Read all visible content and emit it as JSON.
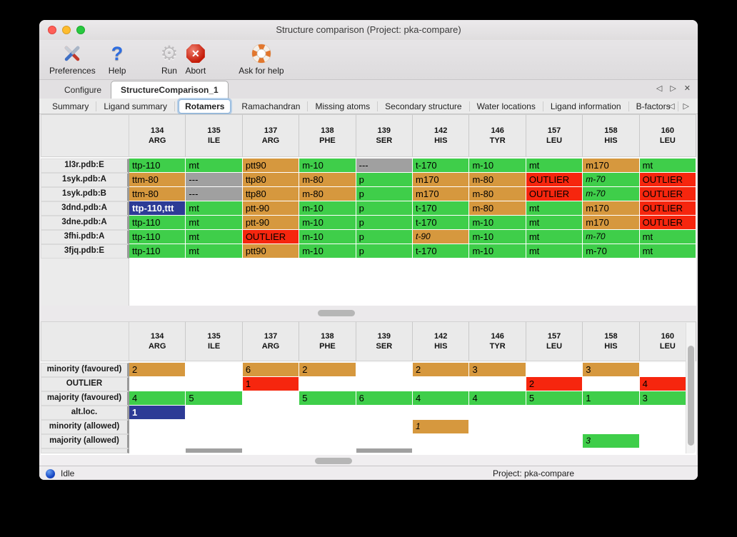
{
  "window": {
    "title": "Structure comparison (Project: pka-compare)"
  },
  "toolbar": [
    {
      "label": "Preferences"
    },
    {
      "label": "Help"
    },
    {
      "label": "Run"
    },
    {
      "label": "Abort"
    },
    {
      "label": "Ask for help"
    }
  ],
  "tabs": {
    "items": [
      "Configure",
      "StructureComparison_1"
    ],
    "active_index": 1
  },
  "subtabs": {
    "items": [
      "Summary",
      "Ligand summary",
      "Rotamers",
      "Ramachandran",
      "Missing atoms",
      "Secondary structure",
      "Water locations",
      "Ligand information",
      "B-factors"
    ],
    "active_index": 2
  },
  "nav": {
    "tab_arrows": [
      "◁",
      "▷",
      "✕"
    ],
    "subtab_arrows": [
      "◁",
      "▷"
    ]
  },
  "colors": {
    "favoured": "#3fce4a",
    "minority": "#d6983e",
    "outlier": "#f6260e",
    "missing": "#a0a0a0",
    "selected": "#2d3b96",
    "selected_text": "#ffffff"
  },
  "columns": [
    {
      "number": "134",
      "residue": "ARG"
    },
    {
      "number": "135",
      "residue": "ILE"
    },
    {
      "number": "137",
      "residue": "ARG"
    },
    {
      "number": "138",
      "residue": "PHE"
    },
    {
      "number": "139",
      "residue": "SER"
    },
    {
      "number": "142",
      "residue": "HIS"
    },
    {
      "number": "146",
      "residue": "TYR"
    },
    {
      "number": "157",
      "residue": "LEU"
    },
    {
      "number": "158",
      "residue": "HIS"
    },
    {
      "number": "160",
      "residue": "LEU"
    }
  ],
  "rotamer_table": {
    "rows": [
      {
        "label": "1l3r.pdb:E",
        "cells": [
          {
            "t": "ttp-110",
            "s": "favoured"
          },
          {
            "t": "mt",
            "s": "favoured"
          },
          {
            "t": "ptt90",
            "s": "minority"
          },
          {
            "t": "m-10",
            "s": "favoured"
          },
          {
            "t": "---",
            "s": "missing"
          },
          {
            "t": "t-170",
            "s": "favoured"
          },
          {
            "t": "m-10",
            "s": "favoured"
          },
          {
            "t": "mt",
            "s": "favoured"
          },
          {
            "t": "m170",
            "s": "minority"
          },
          {
            "t": "mt",
            "s": "favoured"
          }
        ]
      },
      {
        "label": "1syk.pdb:A",
        "cells": [
          {
            "t": "ttm-80",
            "s": "minority"
          },
          {
            "t": "---",
            "s": "missing"
          },
          {
            "t": "ttp80",
            "s": "minority"
          },
          {
            "t": "m-80",
            "s": "minority"
          },
          {
            "t": "p",
            "s": "favoured"
          },
          {
            "t": "m170",
            "s": "minority"
          },
          {
            "t": "m-80",
            "s": "minority"
          },
          {
            "t": "OUTLIER",
            "s": "outlier"
          },
          {
            "t": "m-70",
            "s": "favoured",
            "i": true
          },
          {
            "t": "OUTLIER",
            "s": "outlier"
          }
        ]
      },
      {
        "label": "1syk.pdb:B",
        "cells": [
          {
            "t": "ttm-80",
            "s": "minority"
          },
          {
            "t": "---",
            "s": "missing"
          },
          {
            "t": "ttp80",
            "s": "minority"
          },
          {
            "t": "m-80",
            "s": "minority"
          },
          {
            "t": "p",
            "s": "favoured"
          },
          {
            "t": "m170",
            "s": "minority"
          },
          {
            "t": "m-80",
            "s": "minority"
          },
          {
            "t": "OUTLIER",
            "s": "outlier"
          },
          {
            "t": "m-70",
            "s": "favoured",
            "i": true
          },
          {
            "t": "OUTLIER",
            "s": "outlier"
          }
        ]
      },
      {
        "label": "3dnd.pdb:A",
        "cells": [
          {
            "t": "ttp-110,ttt",
            "s": "selected"
          },
          {
            "t": "mt",
            "s": "favoured"
          },
          {
            "t": "ptt-90",
            "s": "minority"
          },
          {
            "t": "m-10",
            "s": "favoured"
          },
          {
            "t": "p",
            "s": "favoured"
          },
          {
            "t": "t-170",
            "s": "favoured"
          },
          {
            "t": "m-80",
            "s": "minority"
          },
          {
            "t": "mt",
            "s": "favoured"
          },
          {
            "t": "m170",
            "s": "minority"
          },
          {
            "t": "OUTLIER",
            "s": "outlier"
          }
        ]
      },
      {
        "label": "3dne.pdb:A",
        "cells": [
          {
            "t": "ttp-110",
            "s": "favoured"
          },
          {
            "t": "mt",
            "s": "favoured"
          },
          {
            "t": "ptt-90",
            "s": "minority"
          },
          {
            "t": "m-10",
            "s": "favoured"
          },
          {
            "t": "p",
            "s": "favoured"
          },
          {
            "t": "t-170",
            "s": "favoured"
          },
          {
            "t": "m-10",
            "s": "favoured"
          },
          {
            "t": "mt",
            "s": "favoured"
          },
          {
            "t": "m170",
            "s": "minority"
          },
          {
            "t": "OUTLIER",
            "s": "outlier"
          }
        ]
      },
      {
        "label": "3fhi.pdb:A",
        "cells": [
          {
            "t": "ttp-110",
            "s": "favoured"
          },
          {
            "t": "mt",
            "s": "favoured"
          },
          {
            "t": "OUTLIER",
            "s": "outlier"
          },
          {
            "t": "m-10",
            "s": "favoured"
          },
          {
            "t": "p",
            "s": "favoured"
          },
          {
            "t": "t-90",
            "s": "minority",
            "i": true
          },
          {
            "t": "m-10",
            "s": "favoured"
          },
          {
            "t": "mt",
            "s": "favoured"
          },
          {
            "t": "m-70",
            "s": "favoured",
            "i": true
          },
          {
            "t": "mt",
            "s": "favoured"
          }
        ]
      },
      {
        "label": "3fjq.pdb:E",
        "cells": [
          {
            "t": "ttp-110",
            "s": "favoured"
          },
          {
            "t": "mt",
            "s": "favoured"
          },
          {
            "t": "ptt90",
            "s": "minority"
          },
          {
            "t": "m-10",
            "s": "favoured"
          },
          {
            "t": "p",
            "s": "favoured"
          },
          {
            "t": "t-170",
            "s": "favoured"
          },
          {
            "t": "m-10",
            "s": "favoured"
          },
          {
            "t": "mt",
            "s": "favoured"
          },
          {
            "t": "m-70",
            "s": "favoured"
          },
          {
            "t": "mt",
            "s": "favoured"
          }
        ]
      }
    ]
  },
  "summary_table": {
    "rows": [
      {
        "label": "minority (favoured)",
        "cells": [
          {
            "t": "2",
            "s": "minority"
          },
          {
            "t": "",
            "s": "none"
          },
          {
            "t": "6",
            "s": "minority"
          },
          {
            "t": "2",
            "s": "minority"
          },
          {
            "t": "",
            "s": "none"
          },
          {
            "t": "2",
            "s": "minority"
          },
          {
            "t": "3",
            "s": "minority"
          },
          {
            "t": "",
            "s": "none"
          },
          {
            "t": "3",
            "s": "minority"
          },
          {
            "t": "",
            "s": "none"
          }
        ]
      },
      {
        "label": "OUTLIER",
        "cells": [
          {
            "t": "",
            "s": "none"
          },
          {
            "t": "",
            "s": "none"
          },
          {
            "t": "1",
            "s": "outlier"
          },
          {
            "t": "",
            "s": "none"
          },
          {
            "t": "",
            "s": "none"
          },
          {
            "t": "",
            "s": "none"
          },
          {
            "t": "",
            "s": "none"
          },
          {
            "t": "2",
            "s": "outlier"
          },
          {
            "t": "",
            "s": "none"
          },
          {
            "t": "4",
            "s": "outlier"
          }
        ]
      },
      {
        "label": "majority (favoured)",
        "cells": [
          {
            "t": "4",
            "s": "favoured"
          },
          {
            "t": "5",
            "s": "favoured"
          },
          {
            "t": "",
            "s": "none"
          },
          {
            "t": "5",
            "s": "favoured"
          },
          {
            "t": "6",
            "s": "favoured"
          },
          {
            "t": "4",
            "s": "favoured"
          },
          {
            "t": "4",
            "s": "favoured"
          },
          {
            "t": "5",
            "s": "favoured"
          },
          {
            "t": "1",
            "s": "favoured"
          },
          {
            "t": "3",
            "s": "favoured"
          }
        ]
      },
      {
        "label": "alt.loc.",
        "cells": [
          {
            "t": "1",
            "s": "selected"
          },
          {
            "t": "",
            "s": "none"
          },
          {
            "t": "",
            "s": "none"
          },
          {
            "t": "",
            "s": "none"
          },
          {
            "t": "",
            "s": "none"
          },
          {
            "t": "",
            "s": "none"
          },
          {
            "t": "",
            "s": "none"
          },
          {
            "t": "",
            "s": "none"
          },
          {
            "t": "",
            "s": "none"
          },
          {
            "t": "",
            "s": "none"
          }
        ]
      },
      {
        "label": "minority (allowed)",
        "cells": [
          {
            "t": "",
            "s": "none"
          },
          {
            "t": "",
            "s": "none"
          },
          {
            "t": "",
            "s": "none"
          },
          {
            "t": "",
            "s": "none"
          },
          {
            "t": "",
            "s": "none"
          },
          {
            "t": "1",
            "s": "minority",
            "i": true
          },
          {
            "t": "",
            "s": "none"
          },
          {
            "t": "",
            "s": "none"
          },
          {
            "t": "",
            "s": "none"
          },
          {
            "t": "",
            "s": "none"
          }
        ]
      },
      {
        "label": "majority (allowed)",
        "cells": [
          {
            "t": "",
            "s": "none"
          },
          {
            "t": "",
            "s": "none"
          },
          {
            "t": "",
            "s": "none"
          },
          {
            "t": "",
            "s": "none"
          },
          {
            "t": "",
            "s": "none"
          },
          {
            "t": "",
            "s": "none"
          },
          {
            "t": "",
            "s": "none"
          },
          {
            "t": "",
            "s": "none"
          },
          {
            "t": "3",
            "s": "favoured",
            "i": true
          },
          {
            "t": "",
            "s": "none"
          }
        ]
      },
      {
        "label": "",
        "partial": true,
        "cells": [
          {
            "t": "",
            "s": "none"
          },
          {
            "t": "",
            "s": "missing"
          },
          {
            "t": "",
            "s": "none"
          },
          {
            "t": "",
            "s": "none"
          },
          {
            "t": "",
            "s": "missing"
          },
          {
            "t": "",
            "s": "none"
          },
          {
            "t": "",
            "s": "none"
          },
          {
            "t": "",
            "s": "none"
          },
          {
            "t": "",
            "s": "none"
          },
          {
            "t": "",
            "s": "none"
          }
        ]
      }
    ]
  },
  "statusbar": {
    "status": "Idle",
    "project": "Project: pka-compare"
  }
}
